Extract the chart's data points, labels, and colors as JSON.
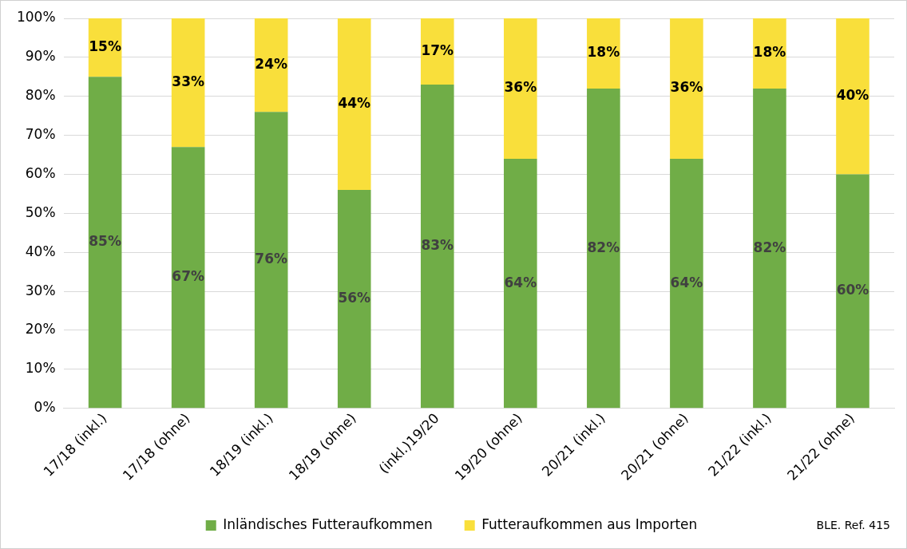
{
  "chart_data": {
    "type": "bar",
    "stacked": true,
    "grid": "y",
    "legend": "bottom",
    "categories": [
      "17/18 (inkl.)",
      "17/18 (ohne)",
      "18/19 (inkl.)",
      "18/19 (ohne)",
      "(inkl.)19/20",
      "19/20 (ohne)",
      "20/21 (inkl.)",
      "20/21 (ohne)",
      "21/22 (inkl.)",
      "21/22 (ohne)"
    ],
    "series": [
      {
        "name": "Inländisches Futteraufkommen",
        "color": "#70ad47",
        "values": [
          85,
          67,
          76,
          56,
          83,
          64,
          82,
          64,
          82,
          60
        ],
        "value_labels": [
          "85%",
          "67%",
          "76%",
          "56%",
          "83%",
          "64%",
          "82%",
          "64%",
          "82%",
          "60%"
        ]
      },
      {
        "name": "Futteraufkommen aus Importen",
        "color": "#f9df3b",
        "values": [
          15,
          33,
          24,
          44,
          17,
          36,
          18,
          36,
          18,
          40
        ],
        "value_labels": [
          "15%",
          "33%",
          "24%",
          "44%",
          "17%",
          "36%",
          "18%",
          "36%",
          "18%",
          "40%"
        ]
      }
    ],
    "ylim": [
      0,
      100
    ],
    "yticks": [
      {
        "value": 0,
        "label": "0%"
      },
      {
        "value": 10,
        "label": "10%"
      },
      {
        "value": 20,
        "label": "20%"
      },
      {
        "value": 30,
        "label": "30%"
      },
      {
        "value": 40,
        "label": "40%"
      },
      {
        "value": 50,
        "label": "50%"
      },
      {
        "value": 60,
        "label": "60%"
      },
      {
        "value": 70,
        "label": "70%"
      },
      {
        "value": 80,
        "label": "80%"
      },
      {
        "value": 90,
        "label": "90%"
      },
      {
        "value": 100,
        "label": "100%"
      }
    ],
    "annotations": [
      "BLE. Ref. 415"
    ]
  }
}
